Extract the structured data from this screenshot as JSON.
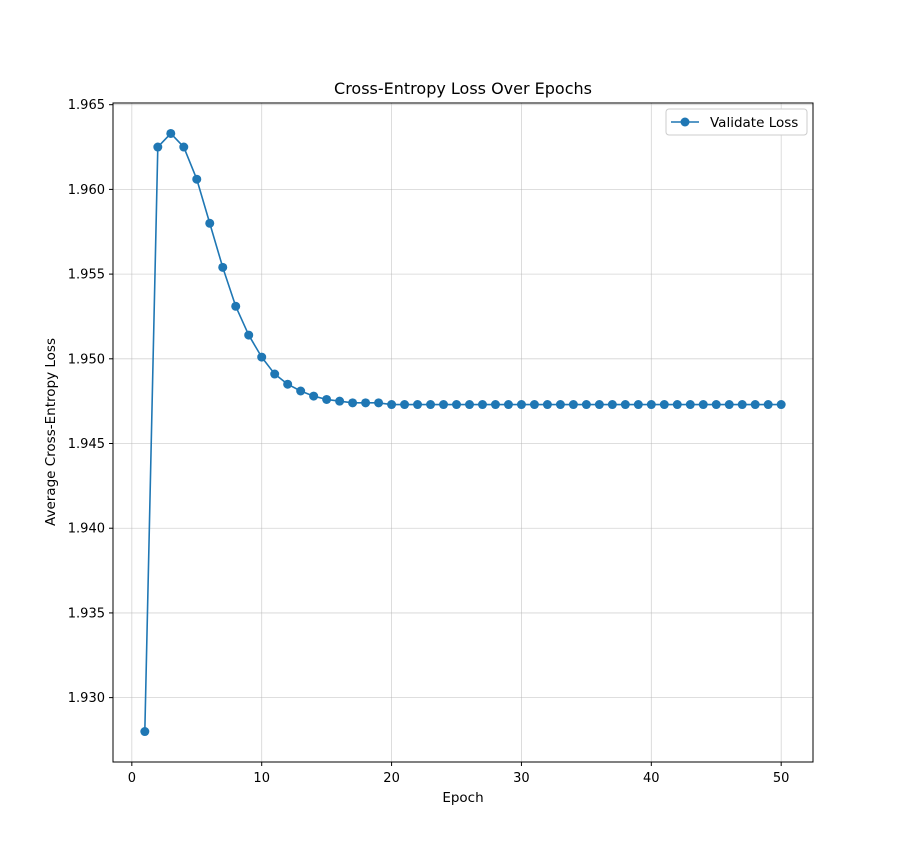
{
  "chart_data": {
    "type": "line",
    "title": "Cross-Entropy Loss Over Epochs",
    "xlabel": "Epoch",
    "ylabel": "Average Cross-Entropy Loss",
    "xlim": [
      -1.45,
      52.45
    ],
    "ylim": [
      1.9262,
      1.9651
    ],
    "xticks": [
      0,
      10,
      20,
      30,
      40,
      50
    ],
    "yticks": [
      1.93,
      1.935,
      1.94,
      1.945,
      1.95,
      1.955,
      1.96,
      1.965
    ],
    "ytick_labels": [
      "1.930",
      "1.935",
      "1.940",
      "1.945",
      "1.950",
      "1.955",
      "1.960",
      "1.965"
    ],
    "grid": true,
    "legend_position": "upper right",
    "series": [
      {
        "name": "Validate Loss",
        "color": "#1f77b4",
        "marker": "circle",
        "x": [
          1,
          2,
          3,
          4,
          5,
          6,
          7,
          8,
          9,
          10,
          11,
          12,
          13,
          14,
          15,
          16,
          17,
          18,
          19,
          20,
          21,
          22,
          23,
          24,
          25,
          26,
          27,
          28,
          29,
          30,
          31,
          32,
          33,
          34,
          35,
          36,
          37,
          38,
          39,
          40,
          41,
          42,
          43,
          44,
          45,
          46,
          47,
          48,
          49,
          50
        ],
        "values": [
          1.928,
          1.9625,
          1.9633,
          1.9625,
          1.9606,
          1.958,
          1.9554,
          1.9531,
          1.9514,
          1.9501,
          1.9491,
          1.9485,
          1.9481,
          1.9478,
          1.9476,
          1.9475,
          1.9474,
          1.9474,
          1.9474,
          1.9473,
          1.9473,
          1.9473,
          1.9473,
          1.9473,
          1.9473,
          1.9473,
          1.9473,
          1.9473,
          1.9473,
          1.9473,
          1.9473,
          1.9473,
          1.9473,
          1.9473,
          1.9473,
          1.9473,
          1.9473,
          1.9473,
          1.9473,
          1.9473,
          1.9473,
          1.9473,
          1.9473,
          1.9473,
          1.9473,
          1.9473,
          1.9473,
          1.9473,
          1.9473,
          1.9473
        ]
      }
    ]
  }
}
